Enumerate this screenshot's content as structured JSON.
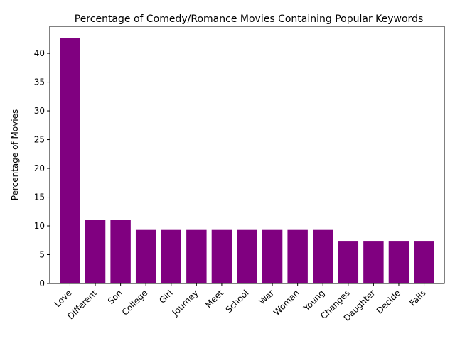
{
  "chart_data": {
    "type": "bar",
    "title": "Percentage of Comedy/Romance Movies Containing Popular Keywords",
    "xlabel": "",
    "ylabel": "Percentage of Movies",
    "categories": [
      "Love",
      "Different",
      "Son",
      "College",
      "Girl",
      "Journey",
      "Meet",
      "School",
      "War",
      "Woman",
      "Young",
      "Changes",
      "Daughter",
      "Decide",
      "Falls"
    ],
    "values": [
      42.6,
      11.1,
      11.1,
      9.3,
      9.3,
      9.3,
      9.3,
      9.3,
      9.3,
      9.3,
      9.3,
      7.4,
      7.4,
      7.4,
      7.4
    ],
    "ylim": [
      0,
      44.7
    ],
    "yticks": [
      0,
      5,
      10,
      15,
      20,
      25,
      30,
      35,
      40
    ],
    "bar_color": "#800080",
    "grid": false,
    "legend": "none"
  }
}
